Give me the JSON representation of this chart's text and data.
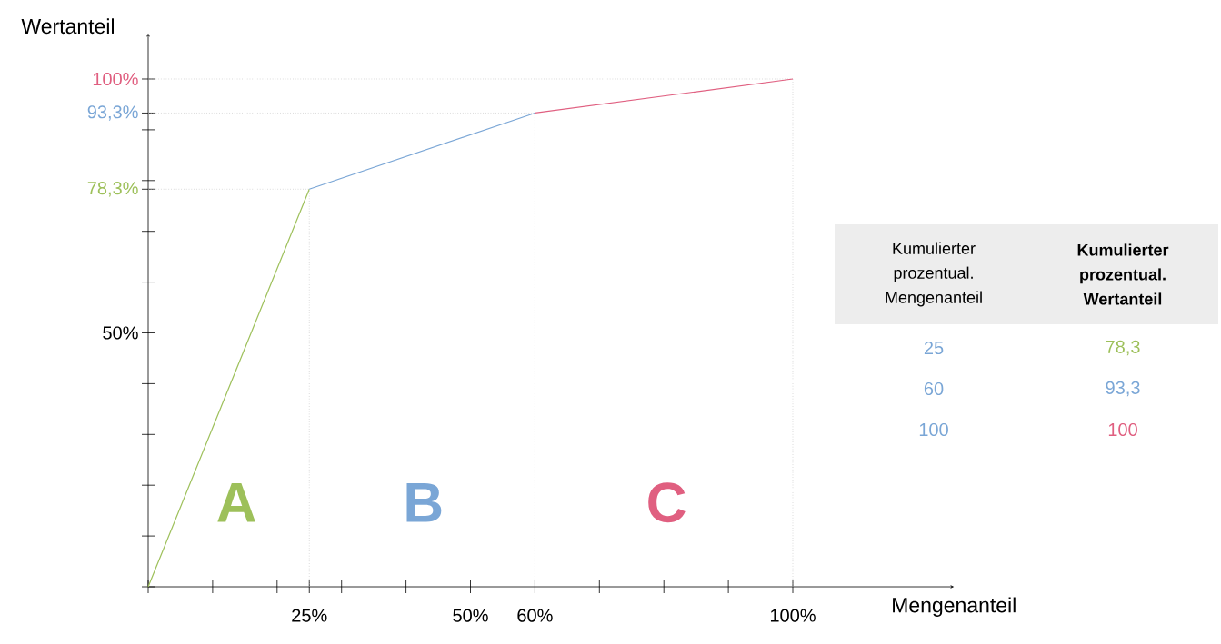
{
  "chart_data": [
    {
      "type": "line",
      "xlabel": "Mengenanteil",
      "ylabel": "Wertanteil",
      "xlim": [
        0,
        125
      ],
      "ylim": [
        0,
        109
      ],
      "xticks": [
        {
          "value": 0,
          "label": null
        },
        {
          "value": 10,
          "label": null
        },
        {
          "value": 20,
          "label": null
        },
        {
          "value": 25,
          "label": "25%"
        },
        {
          "value": 30,
          "label": null
        },
        {
          "value": 40,
          "label": null
        },
        {
          "value": 50,
          "label": "50%"
        },
        {
          "value": 60,
          "label": "60%"
        },
        {
          "value": 70,
          "label": null
        },
        {
          "value": 80,
          "label": null
        },
        {
          "value": 90,
          "label": null
        },
        {
          "value": 100,
          "label": "100%"
        }
      ],
      "yticks": [
        {
          "value": 0,
          "label": null
        },
        {
          "value": 10,
          "label": null
        },
        {
          "value": 20,
          "label": null
        },
        {
          "value": 30,
          "label": null
        },
        {
          "value": 40,
          "label": null
        },
        {
          "value": 50,
          "label": "50%"
        },
        {
          "value": 60,
          "label": null
        },
        {
          "value": 70,
          "label": null
        },
        {
          "value": 78.3,
          "label": "78,3%"
        },
        {
          "value": 80,
          "label": null
        },
        {
          "value": 90,
          "label": null
        },
        {
          "value": 93.3,
          "label": "93,3%"
        },
        {
          "value": 100,
          "label": "100%"
        }
      ],
      "series": [
        {
          "color": "#9dc05a",
          "x": [
            0,
            25
          ],
          "values": [
            0,
            78.3
          ]
        },
        {
          "color": "#7aa6d6",
          "x": [
            25,
            60
          ],
          "values": [
            78.3,
            93.3
          ]
        },
        {
          "color": "#e05f80",
          "x": [
            60,
            100
          ],
          "values": [
            93.3,
            100
          ]
        }
      ],
      "ref_lines": [
        {
          "axis": "y",
          "value": 78.3,
          "color": "#c8c8c8",
          "line_style": "dotted"
        },
        {
          "axis": "y",
          "value": 93.3,
          "color": "#c8c8c8",
          "line_style": "dotted"
        },
        {
          "axis": "y",
          "value": 100,
          "color": "#c8c8c8",
          "line_style": "dotted"
        },
        {
          "axis": "x",
          "value": 25,
          "color": "#c8c8c8",
          "line_style": "dotted"
        },
        {
          "axis": "x",
          "value": 60,
          "color": "#c8c8c8",
          "line_style": "dotted"
        },
        {
          "axis": "x",
          "value": 100,
          "color": "#c8c8c8",
          "line_style": "dotted"
        }
      ],
      "annotations": [
        "A",
        "B",
        "C"
      ]
    },
    {
      "type": "other",
      "annotations": [
        "Kumulierter prozentual. Mengenanteil",
        "Kumulierter prozentual. Wertanteil",
        "25",
        "78,3",
        "60",
        "93,3",
        "100",
        "100"
      ]
    }
  ]
}
